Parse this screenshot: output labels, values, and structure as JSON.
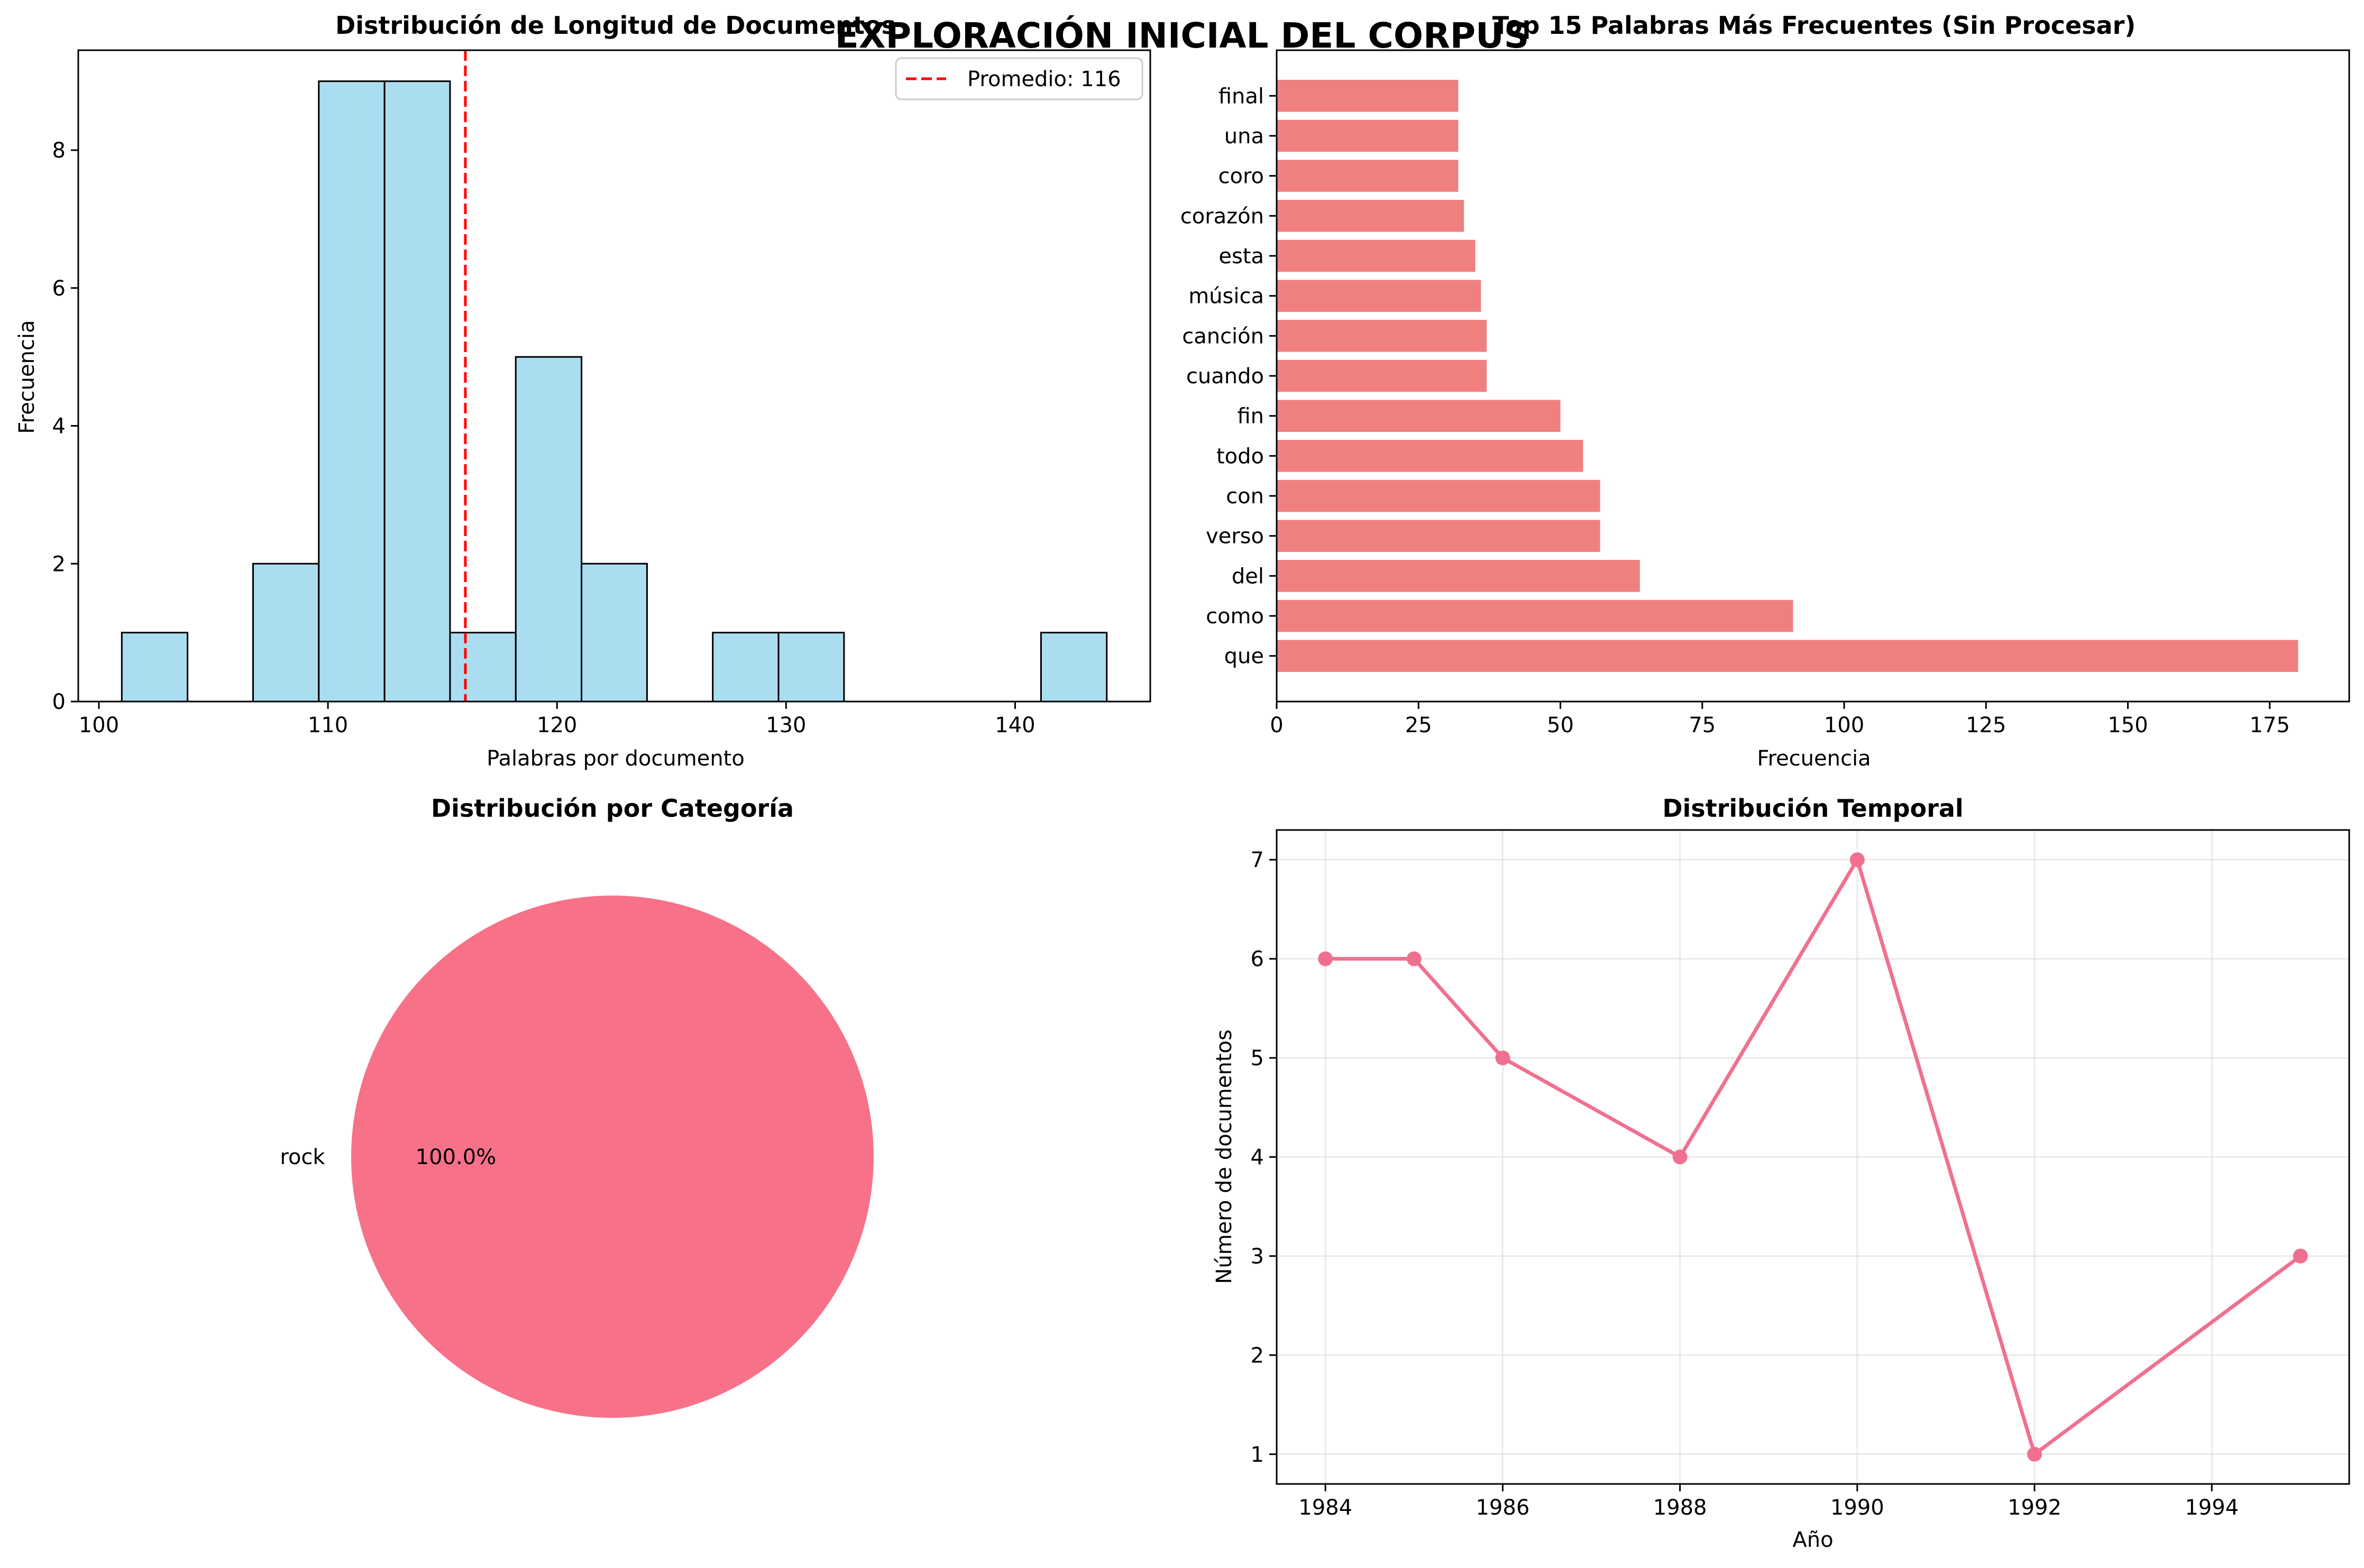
{
  "figure": {
    "suptitle": "EXPLORACIÓN INICIAL DEL CORPUS"
  },
  "chart_data": [
    {
      "type": "bar",
      "subtype": "histogram",
      "title": "Distribución de Longitud de Documentos",
      "xlabel": "Palabras por documento",
      "ylabel": "Frecuencia",
      "bin_edges": [
        101,
        103.87,
        106.73,
        109.6,
        112.47,
        115.33,
        118.2,
        121.07,
        123.93,
        126.8,
        129.67,
        132.53,
        135.4,
        138.27,
        141.13,
        144
      ],
      "values": [
        1,
        0,
        2,
        9,
        9,
        1,
        5,
        2,
        0,
        1,
        1,
        0,
        0,
        0,
        1
      ],
      "xlim": [
        99.1,
        145.9
      ],
      "ylim": [
        0,
        9.45
      ],
      "xticks": [
        100,
        110,
        120,
        130,
        140
      ],
      "yticks": [
        0,
        2,
        4,
        6,
        8
      ],
      "color": "#87ceeb",
      "edgecolor": "#000000",
      "mean_line": {
        "value": 116,
        "label": "Promedio: 116",
        "color": "#ff0000"
      },
      "legend": "top-right",
      "grid": false
    },
    {
      "type": "bar",
      "orientation": "horizontal",
      "title": "Top 15 Palabras Más Frecuentes (Sin Procesar)",
      "xlabel": "Frecuencia",
      "ylabel": "",
      "categories": [
        "que",
        "como",
        "del",
        "verso",
        "con",
        "todo",
        "fin",
        "cuando",
        "canción",
        "música",
        "esta",
        "corazón",
        "coro",
        "una",
        "final"
      ],
      "values": [
        180,
        91,
        64,
        57,
        57,
        54,
        50,
        37,
        37,
        36,
        35,
        33,
        32,
        32,
        32
      ],
      "xlim": [
        0,
        189
      ],
      "xticks": [
        0,
        25,
        50,
        75,
        100,
        125,
        150,
        175
      ],
      "color": "#f08080",
      "grid": false
    },
    {
      "type": "pie",
      "title": "Distribución por Categoría",
      "labels": [
        "rock"
      ],
      "values": [
        100
      ],
      "autopct": [
        "100.0%"
      ],
      "colors": [
        "#f77189"
      ]
    },
    {
      "type": "line",
      "title": "Distribución Temporal",
      "xlabel": "Año",
      "ylabel": "Número de documentos",
      "x": [
        1984,
        1985,
        1986,
        1988,
        1990,
        1992,
        1995
      ],
      "y": [
        6,
        6,
        5,
        4,
        7,
        1,
        3
      ],
      "xlim": [
        1983.45,
        1995.55
      ],
      "ylim": [
        0.7,
        7.3
      ],
      "xticks": [
        1984,
        1986,
        1988,
        1990,
        1992,
        1994
      ],
      "yticks": [
        1,
        2,
        3,
        4,
        5,
        6,
        7
      ],
      "color": "#f07090",
      "marker": "circle",
      "grid": true
    }
  ]
}
